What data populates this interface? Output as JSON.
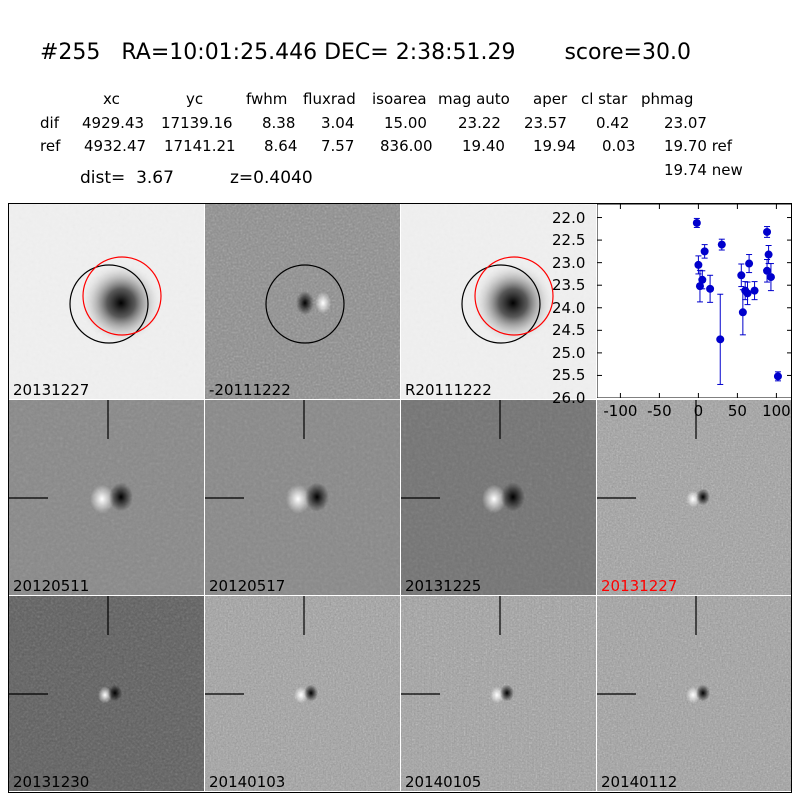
{
  "header": {
    "title": "#255   RA=10:01:25.446 DEC= 2:38:51.29       score=30.0",
    "columns": [
      "xc",
      "yc",
      "fwhm",
      "fluxrad",
      "isoarea",
      "mag auto",
      "aper",
      "cl star",
      "phmag"
    ],
    "rows": [
      {
        "label": "dif",
        "values": [
          "4929.43",
          "17139.16",
          "8.38",
          "3.04",
          "15.00",
          "23.22",
          "23.57",
          "0.42",
          "23.07"
        ]
      },
      {
        "label": "ref",
        "values": [
          "4932.47",
          "17141.21",
          "8.64",
          "7.57",
          "836.00",
          "19.40",
          "19.94",
          "0.03",
          "19.70 ref"
        ]
      }
    ],
    "dist": "dist=  3.67",
    "z": "z=0.4040",
    "phmag_new": "19.74 new"
  },
  "colors": {
    "highlight": "#ff0000",
    "points": "#0000cc",
    "circle_new": "#ff0000",
    "circle_ref": "#000000"
  },
  "tiles": [
    {
      "label": "20131227",
      "kind": "galaxy",
      "highlight": false
    },
    {
      "label": "-20111222",
      "kind": "diff-circles",
      "highlight": false
    },
    {
      "label": "R20111222",
      "kind": "galaxy",
      "highlight": false
    },
    {
      "label": "20120511",
      "kind": "dipole-smooth",
      "highlight": false
    },
    {
      "label": "20120517",
      "kind": "dipole-smooth",
      "highlight": false
    },
    {
      "label": "20131225",
      "kind": "dipole-smooth-dark",
      "highlight": false
    },
    {
      "label": "20131227",
      "kind": "noisy",
      "highlight": true
    },
    {
      "label": "20131230",
      "kind": "dipole-dark",
      "highlight": false
    },
    {
      "label": "20140103",
      "kind": "noisy",
      "highlight": false
    },
    {
      "label": "20140105",
      "kind": "noisy",
      "highlight": false
    },
    {
      "label": "20140112",
      "kind": "noisy",
      "highlight": false
    }
  ],
  "chart_data": {
    "type": "scatter",
    "title": "",
    "xlabel": "",
    "ylabel": "",
    "xlim": [
      -130,
      120
    ],
    "ylim": [
      26.0,
      21.7
    ],
    "y_inverted": true,
    "x_ticks": [
      "-100",
      "-50",
      "0",
      "50",
      "100"
    ],
    "x_tick_values": [
      -100,
      -50,
      0,
      50,
      100
    ],
    "y_ticks": [
      "22.0",
      "22.5",
      "23.0",
      "23.5",
      "24.0",
      "24.5",
      "25.0",
      "25.5",
      "26.0"
    ],
    "y_tick_values": [
      22.0,
      22.5,
      23.0,
      23.5,
      24.0,
      24.5,
      25.0,
      25.5,
      26.0
    ],
    "points": [
      {
        "x": -2,
        "y": 22.12,
        "err": 0.1
      },
      {
        "x": 0,
        "y": 23.05,
        "err": 0.2
      },
      {
        "x": 2,
        "y": 23.52,
        "err": 0.35
      },
      {
        "x": 5,
        "y": 23.38,
        "err": 0.2
      },
      {
        "x": 8,
        "y": 22.75,
        "err": 0.15
      },
      {
        "x": 15,
        "y": 23.58,
        "err": 0.3
      },
      {
        "x": 30,
        "y": 22.6,
        "err": 0.12
      },
      {
        "x": 28,
        "y": 24.7,
        "err": 1.0
      },
      {
        "x": 55,
        "y": 23.28,
        "err": 0.25
      },
      {
        "x": 57,
        "y": 24.1,
        "err": 0.5
      },
      {
        "x": 60,
        "y": 23.62,
        "err": 0.2
      },
      {
        "x": 63,
        "y": 23.68,
        "err": 0.25
      },
      {
        "x": 65,
        "y": 23.02,
        "err": 0.2
      },
      {
        "x": 72,
        "y": 23.62,
        "err": 0.2
      },
      {
        "x": 88,
        "y": 22.32,
        "err": 0.12
      },
      {
        "x": 88,
        "y": 23.18,
        "err": 0.25
      },
      {
        "x": 90,
        "y": 22.82,
        "err": 0.2
      },
      {
        "x": 93,
        "y": 23.32,
        "err": 0.3
      },
      {
        "x": 102,
        "y": 25.52,
        "err": 0.1
      }
    ]
  }
}
